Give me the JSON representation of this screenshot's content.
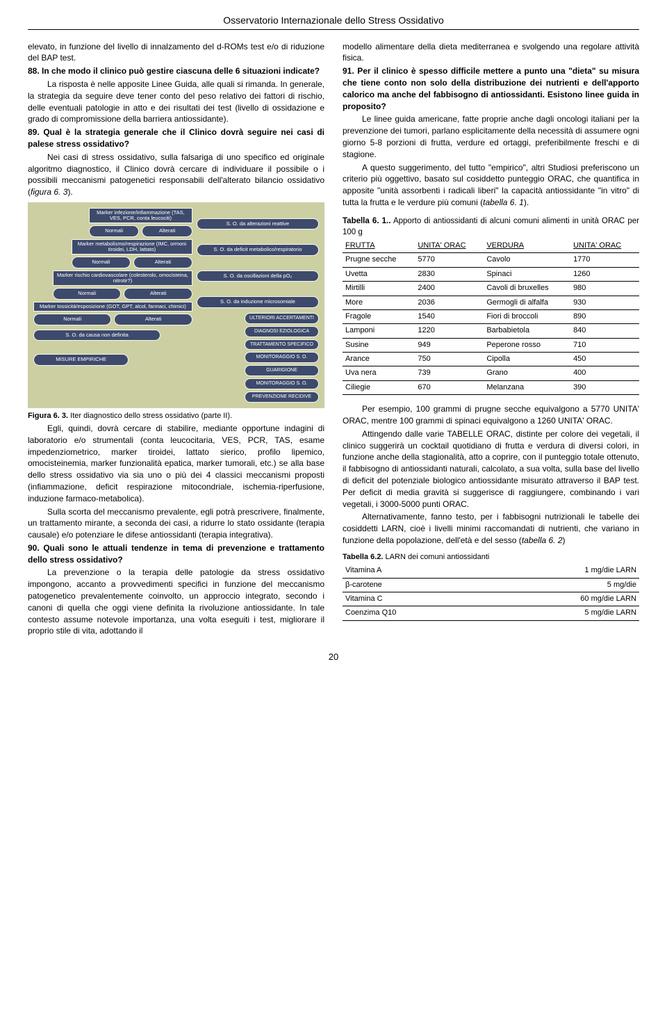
{
  "header": "Osservatorio Internazionale dello Stress Ossidativo",
  "left": {
    "p1": "elevato, in funzione del livello di innalzamento del d-ROMs test e/o di riduzione del BAP test.",
    "q88_num": "88.",
    "q88_text": " In che modo il clinico può gestire ciascuna delle 6 situazioni indicate?",
    "p2": "La risposta è nelle apposite Linee Guida, alle quali si rimanda. In generale, la strategia da seguire deve tener conto del peso relativo dei fattori di rischio, delle eventuali patologie in atto e dei risultati dei test (livello di ossidazione e grado di compromissione della barriera antiossidante).",
    "q89_num": "89.",
    "q89_text": " Qual è la strategia generale che il Clinico dovrà seguire nei casi di palese stress ossidativo?",
    "p3a": "Nei casi di stress ossidativo, sulla falsariga di uno specifico ed originale algoritmo diagnostico, il Clinico dovrà cercare di individuare il possibile o i possibili meccanismi patogenetici responsabili dell'alterato bilancio ossidativo (",
    "p3b": "figura 6. 3",
    "p3c": ").",
    "figure_caption_a": "Figura 6. 3.",
    "figure_caption_b": " Iter diagnostico dello stress ossidativo (parte II).",
    "p4": "Egli, quindi, dovrà cercare di stabilire, mediante opportune indagini di laboratorio e/o strumentali (conta leucocitaria, VES, PCR, TAS, esame impedenziometrico, marker tiroidei, lattato sierico, profilo lipemico, omocisteinemia, marker funzionalità epatica, marker tumorali, etc.) se alla base dello stress ossidativo via sia uno o più dei 4 classici meccanismi proposti (infiammazione, deficit respirazione mitocondriale, ischemia-riperfusione, induzione farmaco-metabolica).",
    "p5": "Sulla scorta del meccanismo prevalente, egli potrà prescrivere, finalmente, un trattamento mirante, a seconda dei casi, a ridurre lo stato ossidante (terapia causale) e/o potenziare le difese antiossidanti (terapia integrativa).",
    "q90_num": "90.",
    "q90_text": " Quali sono le attuali tendenze in tema di prevenzione e trattamento dello stress ossidativo?",
    "p6": "La prevenzione o la terapia delle patologie da stress ossidativo impongono, accanto a provvedimenti specifici in funzione del meccanismo patogenetico prevalentemente coinvolto, un approccio integrato, secondo i canoni di quella che oggi viene definita la rivoluzione antiossidante. In tale contesto assume notevole importanza, una volta eseguiti i test, migliorare il proprio stile di vita, adottando il"
  },
  "flow": {
    "m1": "Marker infezione/infiammazione\n(TAS, VES, PCR, conta leucociti)",
    "m2": "Marker metabolismo/respirazione\n(IMC, ormoni tiroidei, LDH, lattato)",
    "m3": "Marker rischio cardiovascolare\n(colesterolo, omocisteina, nitrotir?)",
    "m4": "Marker tossicità/esposizione\n(GOT, GPT, alcol, farmaci, chimici)",
    "normali": "Normali",
    "alterati": "Alterati",
    "out1": "S. O. da alterazioni reattive",
    "out2": "S. O. da deficit metabolico/respiratorio",
    "out3": "S. O. da oscillazioni della pO₂",
    "out4": "S. O. da induzione microsomiale",
    "nondef": "S. O. da causa non definita",
    "misure": "MISURE EMPIRICHE",
    "r1": "ULTERIORI ACCERTAMENTI",
    "r2": "DIAGNOSI EZIOLOGICA",
    "r3": "TRATTAMENTO SPECIFICO",
    "r4": "MONITORAGGIO S. O.",
    "r5": "GUARIGIONE",
    "r6": "MONITORAGGIO S. O.",
    "r7": "PREVENZIONE RECIDIVE"
  },
  "right": {
    "p1": "modello alimentare della dieta mediterranea e svolgendo una regolare attività fisica.",
    "q91_num": "91.",
    "q91_text": " Per il clinico è spesso difficile mettere a punto una \"dieta\" su misura che tiene conto non solo della distribuzione dei nutrienti e dell'apporto calorico ma anche del fabbisogno di antiossidanti. Esistono linee guida in proposito?",
    "p2": "Le linee guida americane, fatte proprie anche dagli oncologi italiani per la prevenzione dei tumori, parlano esplicitamente della necessità di assumere ogni giorno 5-8 porzioni di frutta, verdure ed ortaggi, preferibilmente freschi e di stagione.",
    "p3a": "A questo suggerimento, del tutto \"empirico\", altri Studiosi preferiscono un criterio più oggettivo, basato sul cosiddetto punteggio ORAC, che quantifica in apposite \"unità assorbenti i radicali liberi\" la capacità antiossidante \"in vitro\" di tutta la frutta e le verdure più comuni (",
    "p3b": "tabella 6. 1",
    "p3c": ").",
    "table1_caption_a": "Tabella 6. 1..",
    "table1_caption_b": " Apporto di antiossidanti di alcuni comuni alimenti in unità ORAC per 100 g",
    "p4": "Per esempio, 100 grammi di prugne secche equivalgono a 5770 UNITA' ORAC, mentre 100 grammi di spinaci equivalgono a 1260 UNITA' ORAC.",
    "p5": "Attingendo dalle varie TABELLE ORAC, distinte per colore dei vegetali, il clinico suggerirà un cocktail quotidiano di frutta e verdura di diversi colori, in funzione anche della stagionalità, atto a coprire, con il punteggio totale ottenuto, il fabbisogno di antiossidanti naturali, calcolato, a sua volta, sulla base del livello di deficit del potenziale biologico antiossidante misurato attraverso il BAP test. Per deficit di media gravità si suggerisce di raggiungere, combinando i vari vegetali, i 3000-5000 punti ORAC.",
    "p6a": "Alternativamente, fanno testo, per i fabbisogni nutrizionali le tabelle dei cosiddetti LARN, cioè i livelli minimi raccomandati di nutrienti, che variano in funzione della popolazione, dell'età e del sesso (",
    "p6b": "tabella 6. 2",
    "p6c": ")",
    "table2_caption_a": "Tabella 6.2.",
    "table2_caption_b": " LARN dei comuni antiossidanti"
  },
  "orac": {
    "headers": [
      "FRUTTA",
      "UNITA' ORAC",
      "VERDURA",
      "UNITA' ORAC"
    ],
    "rows": [
      [
        "Prugne secche",
        "5770",
        "Cavolo",
        "1770"
      ],
      [
        "Uvetta",
        "2830",
        "Spinaci",
        "1260"
      ],
      [
        "Mirtilli",
        "2400",
        "Cavoli di bruxelles",
        "980"
      ],
      [
        "More",
        "2036",
        "Germogli di alfalfa",
        "930"
      ],
      [
        "Fragole",
        "1540",
        "Fiori di broccoli",
        "890"
      ],
      [
        "Lamponi",
        "1220",
        "Barbabietola",
        "840"
      ],
      [
        "Susine",
        "949",
        "Peperone rosso",
        "710"
      ],
      [
        "Arance",
        "750",
        "Cipolla",
        "450"
      ],
      [
        "Uva nera",
        "739",
        "Grano",
        "400"
      ],
      [
        "Ciliegie",
        "670",
        "Melanzana",
        "390"
      ]
    ]
  },
  "larn": {
    "rows": [
      [
        "Vitamina A",
        "1 mg/die LARN"
      ],
      [
        "β-carotene",
        "5 mg/die"
      ],
      [
        "Vitamina C",
        "60 mg/die  LARN"
      ],
      [
        "Coenzima Q10",
        "5 mg/die LARN"
      ]
    ]
  },
  "page_num": "20"
}
